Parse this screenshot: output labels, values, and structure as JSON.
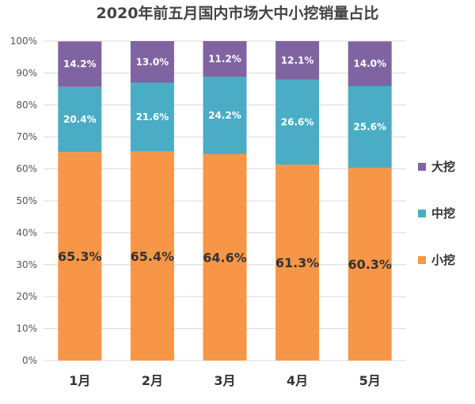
{
  "chart_data": {
    "type": "bar",
    "stacked": true,
    "title": "2020年前五月国内市场大中小挖销量占比",
    "categories": [
      "1月",
      "2月",
      "3月",
      "4月",
      "5月"
    ],
    "series": [
      {
        "name": "小挖",
        "color": "#F79646",
        "values": [
          65.3,
          65.4,
          64.6,
          61.3,
          60.3
        ],
        "labels": [
          "65.3%",
          "65.4%",
          "64.6%",
          "61.3%",
          "60.3%"
        ]
      },
      {
        "name": "中挖",
        "color": "#4BACC6",
        "values": [
          20.4,
          21.6,
          24.2,
          26.6,
          25.6
        ],
        "labels": [
          "20.4%",
          "21.6%",
          "24.2%",
          "26.6%",
          "25.6%"
        ]
      },
      {
        "name": "大挖",
        "color": "#8064A2",
        "values": [
          14.2,
          13.0,
          11.2,
          12.1,
          14.0
        ],
        "labels": [
          "14.2%",
          "13.0%",
          "11.2%",
          "12.1%",
          "14.0%"
        ]
      }
    ],
    "ylim": [
      0,
      100
    ],
    "yticks": [
      "0%",
      "10%",
      "20%",
      "30%",
      "40%",
      "50%",
      "60%",
      "70%",
      "80%",
      "90%",
      "100%"
    ],
    "grid": true,
    "legend": {
      "position": "right",
      "order": [
        "大挖",
        "中挖",
        "小挖"
      ]
    }
  }
}
